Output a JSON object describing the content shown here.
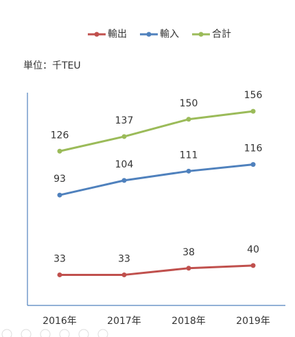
{
  "chart_data": {
    "type": "line",
    "unit_label": "単位：千TEU",
    "categories": [
      "2016年",
      "2017年",
      "2018年",
      "2019年"
    ],
    "series": [
      {
        "name": "輸出",
        "color": "#c0504d",
        "values": [
          33,
          33,
          38,
          40
        ]
      },
      {
        "name": "輸入",
        "color": "#4f81bd",
        "values": [
          93,
          104,
          111,
          116
        ]
      },
      {
        "name": "合計",
        "color": "#9bbb59",
        "values": [
          126,
          137,
          150,
          156
        ]
      }
    ],
    "ylim": [
      10,
      170
    ],
    "legend": "top"
  }
}
